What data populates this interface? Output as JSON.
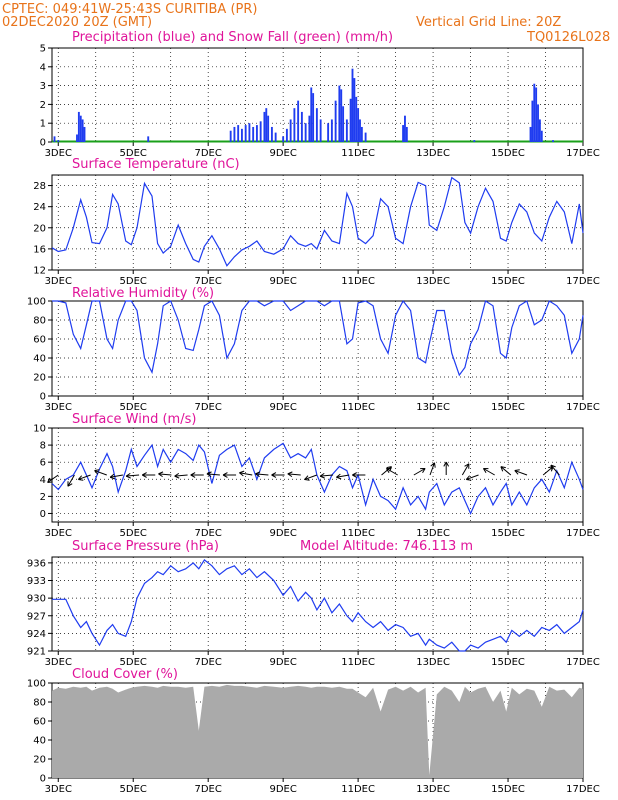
{
  "header": {
    "station": "CPTEC:  049:41W-25:43S  CURITIBA (PR)",
    "run": "02DEC2020 20Z (GMT)",
    "gridline": "Vertical Grid Line: 20Z",
    "code": "TQ0126L028"
  },
  "x_tick_labels": [
    "3DEC",
    "5DEC",
    "7DEC",
    "9DEC",
    "11DEC",
    "13DEC",
    "15DEC",
    "17DEC"
  ],
  "chart_data": [
    {
      "id": "precip",
      "type": "bar",
      "title": "Precipitation (blue) and Snow Fall (green) (mm/h)",
      "xlim": [
        2.833,
        17.0
      ],
      "ylim": [
        0,
        5
      ],
      "yticks": [
        0,
        1,
        2,
        3,
        4,
        5
      ],
      "colors": {
        "precip": "#1f3cf0",
        "snow": "#1aa01a"
      },
      "series": [
        {
          "values": [
            [
              2.9,
              0.3
            ],
            [
              3.0,
              0.1
            ],
            [
              3.5,
              0.4
            ],
            [
              3.55,
              1.6
            ],
            [
              3.6,
              1.4
            ],
            [
              3.65,
              1.2
            ],
            [
              3.7,
              0.8
            ],
            [
              5.4,
              0.3
            ],
            [
              7.6,
              0.6
            ],
            [
              7.7,
              0.8
            ],
            [
              7.8,
              0.9
            ],
            [
              7.9,
              0.7
            ],
            [
              8.0,
              0.9
            ],
            [
              8.1,
              1.0
            ],
            [
              8.2,
              0.8
            ],
            [
              8.3,
              0.9
            ],
            [
              8.4,
              1.1
            ],
            [
              8.5,
              1.6
            ],
            [
              8.55,
              1.8
            ],
            [
              8.6,
              1.4
            ],
            [
              8.7,
              0.8
            ],
            [
              8.8,
              0.5
            ],
            [
              9.0,
              0.3
            ],
            [
              9.1,
              0.7
            ],
            [
              9.2,
              1.2
            ],
            [
              9.3,
              1.8
            ],
            [
              9.4,
              2.2
            ],
            [
              9.5,
              1.6
            ],
            [
              9.6,
              1.0
            ],
            [
              9.7,
              1.4
            ],
            [
              9.75,
              2.9
            ],
            [
              9.8,
              2.6
            ],
            [
              9.9,
              1.8
            ],
            [
              10.0,
              1.2
            ],
            [
              10.2,
              1.0
            ],
            [
              10.3,
              1.2
            ],
            [
              10.4,
              2.2
            ],
            [
              10.5,
              3.0
            ],
            [
              10.55,
              2.8
            ],
            [
              10.6,
              1.9
            ],
            [
              10.7,
              1.2
            ],
            [
              10.8,
              2.3
            ],
            [
              10.85,
              3.9
            ],
            [
              10.9,
              3.4
            ],
            [
              10.95,
              2.4
            ],
            [
              11.0,
              1.8
            ],
            [
              11.05,
              1.2
            ],
            [
              11.1,
              0.8
            ],
            [
              11.2,
              0.5
            ],
            [
              12.2,
              0.9
            ],
            [
              12.25,
              1.4
            ],
            [
              12.3,
              0.8
            ],
            [
              14.1,
              0.1
            ],
            [
              15.6,
              0.8
            ],
            [
              15.65,
              2.2
            ],
            [
              15.7,
              3.1
            ],
            [
              15.75,
              2.9
            ],
            [
              15.8,
              2.0
            ],
            [
              15.85,
              1.2
            ],
            [
              15.9,
              0.6
            ],
            [
              16.2,
              0.1
            ]
          ]
        }
      ]
    },
    {
      "id": "temp",
      "type": "line",
      "title": "Surface Temperature (nC)",
      "xlim": [
        2.833,
        17.0
      ],
      "ylim": [
        12,
        30
      ],
      "yticks": [
        12,
        16,
        20,
        24,
        28
      ],
      "color": "#1f3cf0",
      "x": [
        2.833,
        3.0,
        3.2,
        3.4,
        3.6,
        3.75,
        3.9,
        4.1,
        4.3,
        4.45,
        4.6,
        4.8,
        4.95,
        5.1,
        5.3,
        5.5,
        5.65,
        5.8,
        6.0,
        6.2,
        6.4,
        6.6,
        6.75,
        6.9,
        7.1,
        7.3,
        7.5,
        7.7,
        7.9,
        8.1,
        8.3,
        8.5,
        8.75,
        9.0,
        9.2,
        9.4,
        9.6,
        9.75,
        9.9,
        10.1,
        10.3,
        10.5,
        10.7,
        10.85,
        11.0,
        11.2,
        11.4,
        11.6,
        11.8,
        12.0,
        12.2,
        12.4,
        12.6,
        12.8,
        12.9,
        13.1,
        13.3,
        13.5,
        13.7,
        13.85,
        14.0,
        14.2,
        14.4,
        14.6,
        14.8,
        14.95,
        15.1,
        15.3,
        15.5,
        15.7,
        15.9,
        16.1,
        16.3,
        16.5,
        16.7,
        16.9,
        17.0
      ],
      "y": [
        16.2,
        15.5,
        15.8,
        20.0,
        25.3,
        22.0,
        17.2,
        17.0,
        20.0,
        26.3,
        24.5,
        17.5,
        16.8,
        20.0,
        28.4,
        26.0,
        17.0,
        15.2,
        16.5,
        20.5,
        17.0,
        14.0,
        13.5,
        16.5,
        18.5,
        16.0,
        12.8,
        14.5,
        15.8,
        16.5,
        17.5,
        15.5,
        15.0,
        16.0,
        18.5,
        17.0,
        16.5,
        17.0,
        16.0,
        19.5,
        17.5,
        17.0,
        26.5,
        24.0,
        18.0,
        17.0,
        18.5,
        25.5,
        24.0,
        18.0,
        17.0,
        24.0,
        28.6,
        28.0,
        20.5,
        19.5,
        24.0,
        29.5,
        28.5,
        21.0,
        19.0,
        24.0,
        27.5,
        25.0,
        18.0,
        17.5,
        21.0,
        24.5,
        23.0,
        19.0,
        17.5,
        22.0,
        25.0,
        23.0,
        17.0,
        24.5,
        19.0
      ]
    },
    {
      "id": "rh",
      "type": "line",
      "title": "Relative Humidity (%)",
      "xlim": [
        2.833,
        17.0
      ],
      "ylim": [
        0,
        100
      ],
      "yticks": [
        0,
        20,
        40,
        60,
        80,
        100
      ],
      "color": "#1f3cf0",
      "x": [
        2.833,
        3.0,
        3.2,
        3.4,
        3.6,
        3.75,
        3.9,
        4.1,
        4.3,
        4.45,
        4.6,
        4.8,
        4.95,
        5.1,
        5.3,
        5.5,
        5.65,
        5.8,
        6.0,
        6.2,
        6.4,
        6.6,
        6.75,
        6.9,
        7.1,
        7.3,
        7.5,
        7.7,
        7.9,
        8.1,
        8.3,
        8.5,
        8.75,
        9.0,
        9.2,
        9.4,
        9.6,
        9.75,
        9.9,
        10.1,
        10.3,
        10.5,
        10.7,
        10.85,
        11.0,
        11.2,
        11.4,
        11.6,
        11.8,
        12.0,
        12.2,
        12.4,
        12.6,
        12.8,
        12.9,
        13.1,
        13.3,
        13.5,
        13.7,
        13.85,
        14.0,
        14.2,
        14.4,
        14.6,
        14.8,
        14.95,
        15.1,
        15.3,
        15.5,
        15.7,
        15.9,
        16.1,
        16.3,
        16.5,
        16.7,
        16.9,
        17.0
      ],
      "y": [
        100,
        100,
        98,
        65,
        50,
        75,
        100,
        100,
        60,
        50,
        80,
        100,
        100,
        90,
        40,
        25,
        55,
        95,
        100,
        80,
        50,
        48,
        70,
        95,
        100,
        85,
        40,
        55,
        90,
        100,
        100,
        95,
        100,
        100,
        90,
        95,
        100,
        100,
        100,
        95,
        100,
        100,
        55,
        60,
        98,
        100,
        95,
        60,
        45,
        85,
        100,
        90,
        40,
        35,
        55,
        90,
        90,
        45,
        22,
        30,
        55,
        70,
        100,
        95,
        45,
        40,
        72,
        95,
        100,
        75,
        80,
        100,
        95,
        85,
        45,
        60,
        85
      ]
    },
    {
      "id": "wind",
      "type": "line",
      "title": "Surface Wind (m/s)",
      "xlim": [
        2.833,
        17.0
      ],
      "ylim": [
        -1,
        10
      ],
      "yticks": [
        0,
        2,
        4,
        6,
        8,
        10
      ],
      "color": "#1f3cf0",
      "x": [
        2.833,
        3.0,
        3.2,
        3.4,
        3.6,
        3.75,
        3.9,
        4.1,
        4.3,
        4.45,
        4.6,
        4.8,
        4.95,
        5.1,
        5.3,
        5.5,
        5.65,
        5.8,
        6.0,
        6.2,
        6.4,
        6.6,
        6.75,
        6.9,
        7.1,
        7.3,
        7.5,
        7.7,
        7.9,
        8.1,
        8.3,
        8.5,
        8.75,
        9.0,
        9.2,
        9.4,
        9.6,
        9.75,
        9.9,
        10.1,
        10.3,
        10.5,
        10.7,
        10.85,
        11.0,
        11.2,
        11.4,
        11.6,
        11.8,
        12.0,
        12.2,
        12.4,
        12.6,
        12.8,
        12.9,
        13.1,
        13.3,
        13.5,
        13.7,
        13.85,
        14.0,
        14.2,
        14.4,
        14.6,
        14.8,
        14.95,
        15.1,
        15.3,
        15.5,
        15.7,
        15.9,
        16.1,
        16.3,
        16.5,
        16.7,
        16.9,
        17.0
      ],
      "y": [
        3.5,
        2.8,
        4.0,
        4.5,
        6.0,
        4.5,
        3.0,
        5.2,
        7.0,
        5.5,
        2.5,
        5.0,
        7.5,
        5.5,
        6.8,
        8.0,
        5.5,
        7.5,
        6.0,
        7.5,
        7.0,
        6.2,
        8.0,
        7.2,
        3.5,
        6.8,
        7.5,
        8.0,
        5.5,
        6.5,
        4.0,
        6.5,
        7.5,
        8.2,
        6.5,
        7.0,
        6.5,
        7.5,
        4.5,
        2.5,
        4.5,
        5.5,
        5.0,
        3.0,
        4.5,
        1.0,
        4.0,
        2.0,
        1.5,
        0.5,
        3.0,
        1.0,
        2.0,
        0.5,
        2.5,
        3.5,
        1.0,
        2.5,
        3.0,
        1.5,
        0.0,
        2.0,
        3.0,
        1.0,
        2.5,
        3.5,
        1.0,
        2.5,
        1.0,
        3.0,
        4.0,
        2.5,
        5.0,
        3.0,
        6.0,
        4.0,
        2.8
      ],
      "arrows_deg": [
        215,
        240,
        200,
        160,
        190,
        185,
        180,
        175,
        185,
        180,
        175,
        180,
        170,
        175,
        180,
        175,
        200,
        185,
        190,
        180,
        40,
        150,
        30,
        70,
        90,
        60,
        200,
        150,
        140,
        160,
        40,
        130
      ]
    },
    {
      "id": "psfc",
      "type": "line",
      "title": "Surface Pressure (hPa)",
      "annotation": "Model Altitude: 746.113 m",
      "xlim": [
        2.833,
        17.0
      ],
      "ylim": [
        921,
        937
      ],
      "yticks": [
        921,
        924,
        927,
        930,
        933,
        936
      ],
      "color": "#1f3cf0",
      "x": [
        2.833,
        3.0,
        3.2,
        3.4,
        3.6,
        3.75,
        3.9,
        4.1,
        4.3,
        4.45,
        4.6,
        4.8,
        4.95,
        5.1,
        5.3,
        5.5,
        5.65,
        5.8,
        6.0,
        6.2,
        6.4,
        6.6,
        6.75,
        6.9,
        7.1,
        7.3,
        7.5,
        7.7,
        7.9,
        8.1,
        8.3,
        8.5,
        8.75,
        9.0,
        9.2,
        9.4,
        9.6,
        9.75,
        9.9,
        10.1,
        10.3,
        10.5,
        10.7,
        10.85,
        11.0,
        11.2,
        11.4,
        11.6,
        11.8,
        12.0,
        12.2,
        12.4,
        12.6,
        12.8,
        12.9,
        13.1,
        13.3,
        13.5,
        13.7,
        13.85,
        14.0,
        14.2,
        14.4,
        14.6,
        14.8,
        14.95,
        15.1,
        15.3,
        15.5,
        15.7,
        15.9,
        16.1,
        16.3,
        16.5,
        16.7,
        16.9,
        17.0
      ],
      "y": [
        929.8,
        929.8,
        929.8,
        927.0,
        925.0,
        926.0,
        924.0,
        922.0,
        924.5,
        925.5,
        924.0,
        923.5,
        926.0,
        930.0,
        932.5,
        933.5,
        934.5,
        934.0,
        935.5,
        934.5,
        935.0,
        936.0,
        935.0,
        936.5,
        935.5,
        934.0,
        935.0,
        935.5,
        934.0,
        935.0,
        933.5,
        934.5,
        933.0,
        930.5,
        932.0,
        929.5,
        931.0,
        930.0,
        928.0,
        930.0,
        927.5,
        929.0,
        927.0,
        926.0,
        927.5,
        926.0,
        925.0,
        926.0,
        924.5,
        925.5,
        925.0,
        923.5,
        924.0,
        922.0,
        923.0,
        922.0,
        921.5,
        922.5,
        921.0,
        921.0,
        922.0,
        921.5,
        922.5,
        923.0,
        923.5,
        922.5,
        924.5,
        923.5,
        924.5,
        923.5,
        925.0,
        924.5,
        925.5,
        924.0,
        925.0,
        926.0,
        928.0
      ]
    },
    {
      "id": "cloud",
      "type": "area",
      "title": "Cloud Cover (%)",
      "xlim": [
        2.833,
        17.0
      ],
      "ylim": [
        0,
        100
      ],
      "yticks": [
        0,
        20,
        40,
        60,
        80,
        100
      ],
      "color": "#aaaaaa",
      "x": [
        2.833,
        3.0,
        3.2,
        3.4,
        3.6,
        3.75,
        3.9,
        4.1,
        4.3,
        4.45,
        4.6,
        4.8,
        4.95,
        5.1,
        5.3,
        5.5,
        5.65,
        5.8,
        6.0,
        6.2,
        6.4,
        6.6,
        6.75,
        6.9,
        7.1,
        7.3,
        7.5,
        7.7,
        7.9,
        8.1,
        8.3,
        8.5,
        8.75,
        9.0,
        9.2,
        9.4,
        9.6,
        9.75,
        9.9,
        10.1,
        10.3,
        10.5,
        10.7,
        10.85,
        11.0,
        11.2,
        11.4,
        11.6,
        11.8,
        12.0,
        12.2,
        12.4,
        12.6,
        12.8,
        12.9,
        13.1,
        13.3,
        13.5,
        13.7,
        13.85,
        14.0,
        14.2,
        14.4,
        14.6,
        14.8,
        14.95,
        15.1,
        15.3,
        15.5,
        15.7,
        15.9,
        16.1,
        16.3,
        16.5,
        16.7,
        16.9,
        17.0
      ],
      "y": [
        92,
        95,
        94,
        96,
        95,
        96,
        92,
        95,
        96,
        94,
        90,
        93,
        95,
        96,
        97,
        96,
        95,
        97,
        96,
        96,
        95,
        96,
        50,
        96,
        97,
        96,
        98,
        97,
        97,
        96,
        95,
        97,
        96,
        95,
        96,
        97,
        96,
        95,
        96,
        96,
        95,
        96,
        94,
        94,
        90,
        85,
        95,
        70,
        93,
        96,
        92,
        96,
        90,
        95,
        3,
        88,
        96,
        92,
        80,
        96,
        90,
        94,
        96,
        80,
        92,
        70,
        95,
        88,
        94,
        92,
        75,
        96,
        92,
        93,
        85,
        95,
        94
      ]
    }
  ]
}
